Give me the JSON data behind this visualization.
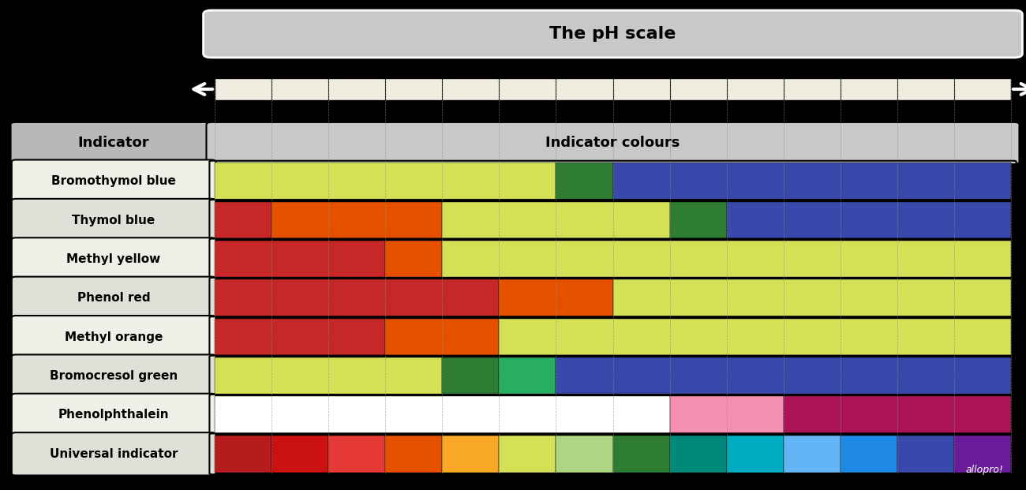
{
  "title": "The pH scale",
  "col_header_left": "Indicator",
  "col_header_right": "Indicator colours",
  "background_color": "#000000",
  "indicators": [
    "Bromothymol blue",
    "Thymol blue",
    "Methyl yellow",
    "Phenol red",
    "Methyl orange",
    "Bromocresol green",
    "Phenolphthalein",
    "Universal indicator"
  ],
  "segments": {
    "Bromothymol blue": [
      {
        "start": 0,
        "end": 6,
        "color": "#d4e157"
      },
      {
        "start": 6,
        "end": 7,
        "color": "#2e7d32"
      },
      {
        "start": 7,
        "end": 14,
        "color": "#3949ab"
      }
    ],
    "Thymol blue": [
      {
        "start": 0,
        "end": 1,
        "color": "#c62828"
      },
      {
        "start": 1,
        "end": 4,
        "color": "#e65100"
      },
      {
        "start": 4,
        "end": 8,
        "color": "#d4e157"
      },
      {
        "start": 8,
        "end": 9,
        "color": "#2e7d32"
      },
      {
        "start": 9,
        "end": 14,
        "color": "#3949ab"
      }
    ],
    "Methyl yellow": [
      {
        "start": 0,
        "end": 3,
        "color": "#c62828"
      },
      {
        "start": 3,
        "end": 4,
        "color": "#e65100"
      },
      {
        "start": 4,
        "end": 14,
        "color": "#d4e157"
      }
    ],
    "Phenol red": [
      {
        "start": 0,
        "end": 5,
        "color": "#c62828"
      },
      {
        "start": 5,
        "end": 7,
        "color": "#e65100"
      },
      {
        "start": 7,
        "end": 14,
        "color": "#d4e157"
      }
    ],
    "Methyl orange": [
      {
        "start": 0,
        "end": 3,
        "color": "#c62828"
      },
      {
        "start": 3,
        "end": 5,
        "color": "#e65100"
      },
      {
        "start": 5,
        "end": 14,
        "color": "#d4e157"
      }
    ],
    "Bromocresol green": [
      {
        "start": 0,
        "end": 4,
        "color": "#d4e157"
      },
      {
        "start": 4,
        "end": 5,
        "color": "#2e7d32"
      },
      {
        "start": 5,
        "end": 6,
        "color": "#27ae60"
      },
      {
        "start": 6,
        "end": 14,
        "color": "#3949ab"
      }
    ],
    "Phenolphthalein": [
      {
        "start": 0,
        "end": 8,
        "color": "#ffffff"
      },
      {
        "start": 8,
        "end": 10,
        "color": "#f48fb1"
      },
      {
        "start": 10,
        "end": 14,
        "color": "#ad1457"
      }
    ],
    "Universal indicator": [
      {
        "start": 0,
        "end": 1,
        "color": "#b71c1c"
      },
      {
        "start": 1,
        "end": 2,
        "color": "#cc1111"
      },
      {
        "start": 2,
        "end": 3,
        "color": "#e53935"
      },
      {
        "start": 3,
        "end": 4,
        "color": "#e65100"
      },
      {
        "start": 4,
        "end": 5,
        "color": "#f9a825"
      },
      {
        "start": 5,
        "end": 6,
        "color": "#d4e157"
      },
      {
        "start": 6,
        "end": 7,
        "color": "#aed581"
      },
      {
        "start": 7,
        "end": 8,
        "color": "#2e7d32"
      },
      {
        "start": 8,
        "end": 9,
        "color": "#00897b"
      },
      {
        "start": 9,
        "end": 10,
        "color": "#00acc1"
      },
      {
        "start": 10,
        "end": 11,
        "color": "#64b5f6"
      },
      {
        "start": 11,
        "end": 12,
        "color": "#1e88e5"
      },
      {
        "start": 12,
        "end": 13,
        "color": "#3949ab"
      },
      {
        "start": 13,
        "end": 14,
        "color": "#6a1b9a"
      }
    ]
  },
  "ph_min": 0,
  "ph_max": 14,
  "header_bg": "#c8c8c8",
  "left_header_bg": "#b8b8b8",
  "row_bg_odd": "#f0f0e8",
  "row_bg_even": "#e0e0d8",
  "scale_bar_color": "#f0ece0",
  "allopro_text": "allopro!",
  "border_color": "#000000",
  "tick_color": "#555555",
  "dashed_line_color": "#888888"
}
